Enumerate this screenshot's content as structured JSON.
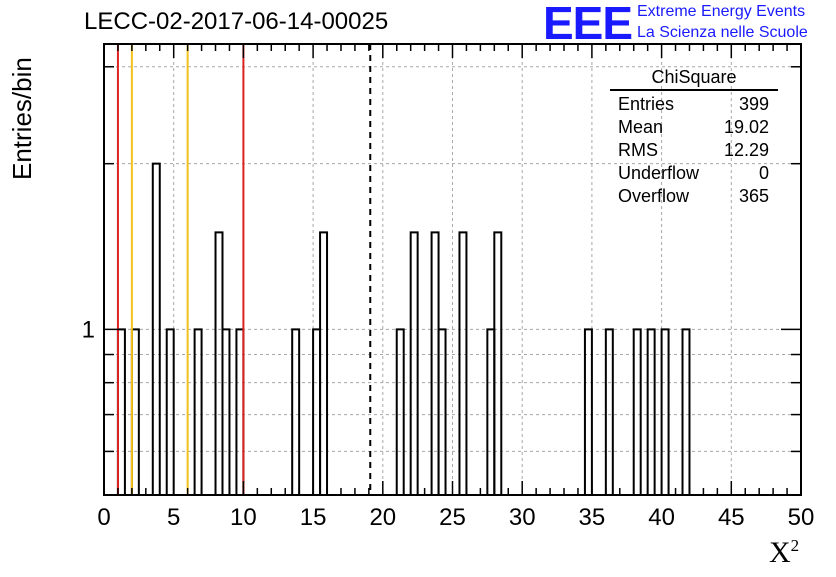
{
  "chart_data": {
    "type": "histogram",
    "title": "LECC-02-2017-06-14-00025",
    "xlabel": "X",
    "xlabel_superscript": "2",
    "ylabel": "Entries/bin",
    "xlim": [
      0,
      50
    ],
    "ylog": true,
    "ylim_log": [
      0.5,
      3.3
    ],
    "x_ticks": [
      "0",
      "5",
      "10",
      "15",
      "20",
      "25",
      "30",
      "35",
      "40",
      "45",
      "50"
    ],
    "x_tick_values": [
      0,
      5,
      10,
      15,
      20,
      25,
      30,
      35,
      40,
      45,
      50
    ],
    "y_ticks": [
      "1"
    ],
    "y_tick_values": [
      1
    ],
    "grid": true,
    "bin_width": 0.5,
    "bins": [
      {
        "x": 1.0,
        "count": 1
      },
      {
        "x": 2.0,
        "count": 1
      },
      {
        "x": 3.5,
        "count": 2
      },
      {
        "x": 4.5,
        "count": 1
      },
      {
        "x": 6.5,
        "count": 1
      },
      {
        "x": 8.0,
        "count": 1.5
      },
      {
        "x": 8.5,
        "count": 1
      },
      {
        "x": 9.5,
        "count": 1
      },
      {
        "x": 13.5,
        "count": 1
      },
      {
        "x": 15.0,
        "count": 1
      },
      {
        "x": 15.5,
        "count": 1.5
      },
      {
        "x": 21.0,
        "count": 1
      },
      {
        "x": 22.0,
        "count": 1.5
      },
      {
        "x": 23.5,
        "count": 1.5
      },
      {
        "x": 24.0,
        "count": 1
      },
      {
        "x": 25.5,
        "count": 1.5
      },
      {
        "x": 27.5,
        "count": 1
      },
      {
        "x": 28.0,
        "count": 1.5
      },
      {
        "x": 34.5,
        "count": 1
      },
      {
        "x": 36.0,
        "count": 1
      },
      {
        "x": 38.0,
        "count": 1
      },
      {
        "x": 39.0,
        "count": 1
      },
      {
        "x": 40.0,
        "count": 1
      },
      {
        "x": 41.5,
        "count": 1
      }
    ],
    "vertical_lines": [
      {
        "x": 1.0,
        "color": "#dd2222",
        "style": "solid"
      },
      {
        "x": 2.0,
        "color": "#f2c21a",
        "style": "solid"
      },
      {
        "x": 6.0,
        "color": "#f2c21a",
        "style": "solid"
      },
      {
        "x": 10.0,
        "color": "#dd2222",
        "style": "solid"
      },
      {
        "x": 19.1,
        "color": "#000000",
        "style": "dashed"
      }
    ],
    "stats_box": {
      "title": "ChiSquare",
      "rows": [
        {
          "label": "Entries",
          "value": "399"
        },
        {
          "label": "Mean",
          "value": "19.02"
        },
        {
          "label": "RMS",
          "value": "12.29"
        },
        {
          "label": "Underflow",
          "value": "0"
        },
        {
          "label": "Overflow",
          "value": "365"
        }
      ]
    }
  },
  "logo": {
    "mark": "EEE",
    "line1": "Extreme Energy Events",
    "line2": "La Scienza nelle Scuole",
    "color": "#1a1aff"
  }
}
